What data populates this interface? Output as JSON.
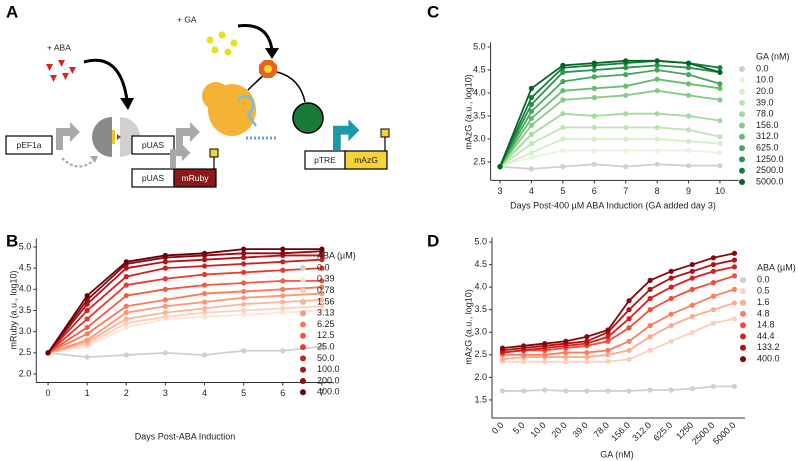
{
  "panels": {
    "a": "A",
    "b": "B",
    "c": "C",
    "d": "D"
  },
  "diagram": {
    "aba": "+ ABA",
    "ga": "+ GA",
    "promoter_ef1a": "pEF1a",
    "promoter_uas_1": "pUAS",
    "promoter_tre": "pTRE",
    "gene_mazg": "mAzG",
    "promoter_uas_2": "pUAS",
    "gene_mruby": "mRuby"
  },
  "chart_data": [
    {
      "type": "line",
      "xlabel": "Days Post-ABA Induction",
      "ylabel": "mRuby (a.u., log10)",
      "legend_title": "ABA (µM)",
      "x": [
        0,
        1,
        2,
        3,
        4,
        5,
        6,
        7
      ],
      "xlim": [
        -0.3,
        7.3
      ],
      "xticks": [
        0,
        1,
        2,
        3,
        4,
        5,
        6,
        7
      ],
      "ylim": [
        1.8,
        5.2
      ],
      "yticks": [
        {
          "value": 2,
          "label": "2.0"
        },
        2.5,
        {
          "value": 3,
          "label": "3.0"
        },
        3.5,
        {
          "value": 4,
          "label": "4.0"
        },
        4.5,
        {
          "value": 5,
          "label": "5.0"
        }
      ],
      "series": [
        {
          "name": "0.0",
          "color": "#d0d0d0",
          "values": [
            2.5,
            2.4,
            2.45,
            2.5,
            2.45,
            2.55,
            2.55,
            2.65
          ]
        },
        {
          "name": "0.39",
          "color": "#fee5d9",
          "values": [
            2.5,
            2.65,
            3.1,
            3.3,
            3.35,
            3.4,
            3.45,
            3.5
          ]
        },
        {
          "name": "0.78",
          "color": "#fdd0bc",
          "values": [
            2.5,
            2.7,
            3.2,
            3.35,
            3.45,
            3.5,
            3.55,
            3.6
          ]
        },
        {
          "name": "1.56",
          "color": "#fcb499",
          "values": [
            2.5,
            2.75,
            3.3,
            3.45,
            3.55,
            3.65,
            3.7,
            3.75
          ]
        },
        {
          "name": "3.13",
          "color": "#fc9777",
          "values": [
            2.5,
            2.8,
            3.45,
            3.6,
            3.7,
            3.8,
            3.85,
            3.9
          ]
        },
        {
          "name": "6.25",
          "color": "#fb7858",
          "values": [
            2.5,
            2.95,
            3.6,
            3.75,
            3.9,
            3.95,
            4.0,
            4.05
          ]
        },
        {
          "name": "12.5",
          "color": "#f4583f",
          "values": [
            2.5,
            3.1,
            3.85,
            4.0,
            4.1,
            4.15,
            4.2,
            4.2
          ]
        },
        {
          "name": "25.0",
          "color": "#e33a2c",
          "values": [
            2.5,
            3.3,
            4.1,
            4.25,
            4.35,
            4.4,
            4.45,
            4.5
          ]
        },
        {
          "name": "50.0",
          "color": "#c9241f",
          "values": [
            2.5,
            3.5,
            4.3,
            4.5,
            4.55,
            4.6,
            4.65,
            4.7
          ]
        },
        {
          "name": "100.0",
          "color": "#ae1419",
          "values": [
            2.5,
            3.65,
            4.5,
            4.65,
            4.7,
            4.75,
            4.8,
            4.8
          ]
        },
        {
          "name": "200.0",
          "color": "#8f0b13",
          "values": [
            2.5,
            3.75,
            4.6,
            4.75,
            4.8,
            4.85,
            4.85,
            4.9
          ]
        },
        {
          "name": "400.0",
          "color": "#67000d",
          "values": [
            2.5,
            3.85,
            4.65,
            4.8,
            4.85,
            4.95,
            4.95,
            4.95
          ]
        }
      ]
    },
    {
      "type": "line",
      "xlabel": "Days Post-400 µM ABA Induction (GA added day 3)",
      "ylabel": "mAzG (a.u., log10)",
      "legend_title": "GA (nM)",
      "x": [
        3,
        4,
        5,
        6,
        7,
        8,
        9,
        10
      ],
      "xlim": [
        2.7,
        10.6
      ],
      "xticks": [
        3,
        4,
        5,
        6,
        7,
        8,
        9,
        10
      ],
      "ylim": [
        2.1,
        5.1
      ],
      "yticks": [
        2.5,
        {
          "value": 3,
          "label": "3.0"
        },
        3.5,
        {
          "value": 4,
          "label": "4.0"
        },
        4.5,
        {
          "value": 5,
          "label": "5.0"
        }
      ],
      "series": [
        {
          "name": "0.0",
          "color": "#d0d0d0",
          "values": [
            2.4,
            2.35,
            2.4,
            2.45,
            2.4,
            2.45,
            2.42,
            2.42
          ]
        },
        {
          "name": "10.0",
          "color": "#e5f5e0",
          "values": [
            2.4,
            2.6,
            2.75,
            2.75,
            2.75,
            2.75,
            2.75,
            2.7
          ]
        },
        {
          "name": "20.0",
          "color": "#d3eecd",
          "values": [
            2.4,
            2.7,
            3.0,
            3.0,
            3.0,
            3.0,
            2.95,
            2.9
          ]
        },
        {
          "name": "39.0",
          "color": "#bde5b6",
          "values": [
            2.4,
            2.9,
            3.25,
            3.25,
            3.25,
            3.25,
            3.2,
            3.05
          ]
        },
        {
          "name": "78.0",
          "color": "#a3da9d",
          "values": [
            2.4,
            3.1,
            3.55,
            3.5,
            3.55,
            3.55,
            3.5,
            3.4
          ]
        },
        {
          "name": "156.0",
          "color": "#86cc85",
          "values": [
            2.4,
            3.3,
            3.85,
            3.9,
            3.95,
            4.05,
            3.95,
            3.85
          ]
        },
        {
          "name": "312.0",
          "color": "#65bb6e",
          "values": [
            2.4,
            3.45,
            4.05,
            4.1,
            4.15,
            4.3,
            4.2,
            4.1
          ]
        },
        {
          "name": "625.0",
          "color": "#45a85b",
          "values": [
            2.4,
            3.6,
            4.25,
            4.35,
            4.4,
            4.5,
            4.4,
            4.2
          ]
        },
        {
          "name": "1250.0",
          "color": "#2d934a",
          "values": [
            2.4,
            3.75,
            4.45,
            4.5,
            4.55,
            4.6,
            4.55,
            4.45
          ]
        },
        {
          "name": "2500.0",
          "color": "#167d3b",
          "values": [
            2.4,
            3.9,
            4.55,
            4.6,
            4.65,
            4.7,
            4.65,
            4.55
          ]
        },
        {
          "name": "5000.0",
          "color": "#036429",
          "values": [
            2.4,
            4.1,
            4.6,
            4.65,
            4.7,
            4.7,
            4.65,
            4.45
          ]
        }
      ]
    },
    {
      "type": "line",
      "xlabel": "GA (nM)",
      "ylabel": "mAzG (a.u., log10)",
      "legend_title": "ABA (µM)",
      "categories": [
        "0.0",
        "5.0",
        "10.0",
        "20.0",
        "39.0",
        "78.0",
        "156.0",
        "312.0",
        "625.0",
        "1250",
        "2500.0",
        "5000.0"
      ],
      "ylim": [
        1.1,
        5.1
      ],
      "yticks": [
        1.5,
        {
          "value": 2,
          "label": "2.0"
        },
        2.5,
        {
          "value": 3,
          "label": "3.0"
        },
        3.5,
        {
          "value": 4,
          "label": "4.0"
        },
        4.5,
        {
          "value": 5,
          "label": "5.0"
        }
      ],
      "series": [
        {
          "name": "0.0",
          "color": "#d0d0d0",
          "values": [
            1.7,
            1.7,
            1.72,
            1.7,
            1.7,
            1.7,
            1.7,
            1.72,
            1.72,
            1.75,
            1.8,
            1.8
          ]
        },
        {
          "name": "0.5",
          "color": "#fdd0bc",
          "values": [
            2.35,
            2.35,
            2.35,
            2.35,
            2.35,
            2.35,
            2.4,
            2.6,
            2.8,
            3.0,
            3.2,
            3.3
          ]
        },
        {
          "name": "1.6",
          "color": "#fcab8f",
          "values": [
            2.4,
            2.45,
            2.45,
            2.45,
            2.45,
            2.5,
            2.6,
            2.9,
            3.15,
            3.35,
            3.5,
            3.65
          ]
        },
        {
          "name": "4.8",
          "color": "#fb7d5d",
          "values": [
            2.5,
            2.5,
            2.5,
            2.55,
            2.55,
            2.6,
            2.8,
            3.15,
            3.4,
            3.6,
            3.8,
            3.95
          ]
        },
        {
          "name": "14.8",
          "color": "#f14e3a",
          "values": [
            2.55,
            2.6,
            2.6,
            2.65,
            2.7,
            2.8,
            3.1,
            3.5,
            3.75,
            3.95,
            4.1,
            4.25
          ]
        },
        {
          "name": "44.4",
          "color": "#d42121",
          "values": [
            2.55,
            2.6,
            2.65,
            2.7,
            2.75,
            2.9,
            3.3,
            3.75,
            4.0,
            4.2,
            4.35,
            4.45
          ]
        },
        {
          "name": "133.2",
          "color": "#b01217",
          "values": [
            2.6,
            2.65,
            2.7,
            2.75,
            2.8,
            3.0,
            3.5,
            3.95,
            4.2,
            4.35,
            4.5,
            4.6
          ]
        },
        {
          "name": "400.0",
          "color": "#850610",
          "values": [
            2.65,
            2.7,
            2.75,
            2.8,
            2.9,
            3.05,
            3.7,
            4.15,
            4.35,
            4.5,
            4.65,
            4.75
          ]
        }
      ]
    }
  ]
}
